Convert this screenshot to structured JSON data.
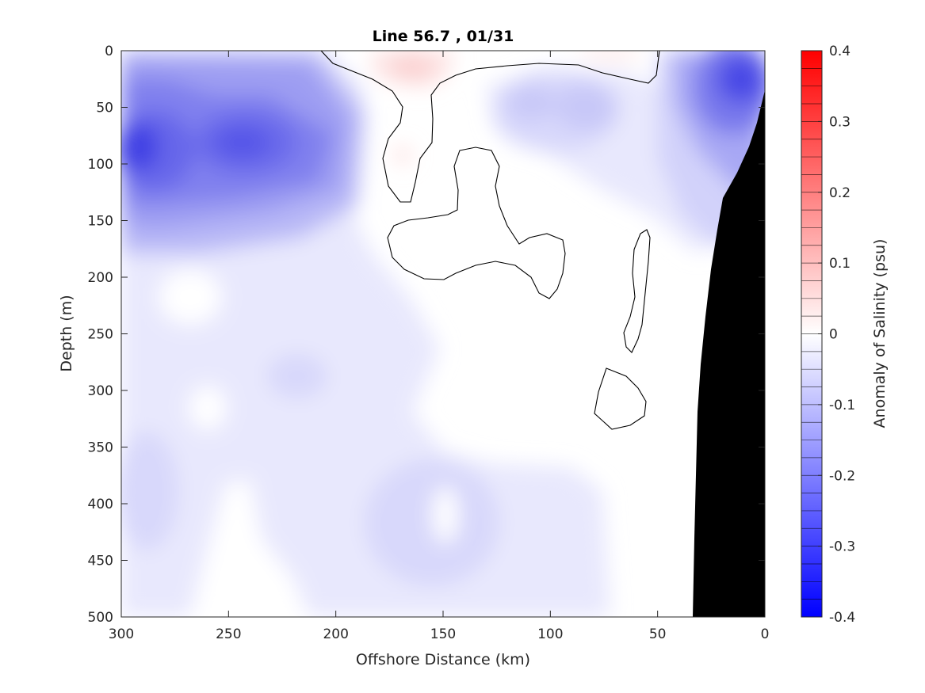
{
  "chart_data": {
    "type": "heatmap",
    "title": "Line 56.7 , 01/31",
    "xlabel": "Offshore Distance (km)",
    "ylabel": "Depth (m)",
    "colorbar_label": "Anomaly of Salinity (psu)",
    "xlim": [
      300,
      0
    ],
    "ylim": [
      0,
      500
    ],
    "x_reversed": true,
    "y_reversed": true,
    "x_ticks": [
      300,
      250,
      200,
      150,
      100,
      50,
      0
    ],
    "y_ticks": [
      0,
      50,
      100,
      150,
      200,
      250,
      300,
      350,
      400,
      450,
      500
    ],
    "colorbar_range": [
      -0.4,
      0.4
    ],
    "colorbar_levels": 32,
    "colorbar_ticks": [
      0.4,
      0.3,
      0.2,
      0.1,
      0,
      -0.1,
      -0.2,
      -0.3,
      -0.4
    ],
    "colorbar_tick_labels": [
      "0.4",
      "0.3",
      "0.2",
      "0.1",
      "0",
      "-0.1",
      "-0.2",
      "-0.3",
      "-0.4"
    ],
    "colors": {
      "positive": "#ff0000",
      "negative": "#0000ff",
      "zero": "#ffffff",
      "bathymetry": "#000000"
    },
    "anomaly_features": [
      {
        "type": "negative",
        "x_km": 290,
        "depth_m": 88,
        "peak": -0.3
      },
      {
        "type": "negative",
        "x_km": 240,
        "depth_m": 80,
        "peak": -0.22
      },
      {
        "type": "negative",
        "x_km": 10,
        "depth_m": 20,
        "peak": -0.28
      },
      {
        "type": "negative",
        "x_km": 85,
        "depth_m": 50,
        "peak": -0.07
      },
      {
        "type": "negative",
        "x_km": 130,
        "depth_m": 430,
        "peak": -0.05
      },
      {
        "type": "positive",
        "x_km": 165,
        "depth_m": 15,
        "peak": 0.04
      },
      {
        "type": "positive",
        "x_km": 160,
        "depth_m": 95,
        "peak": 0.02
      }
    ],
    "grid": false,
    "legend": "colorbar-right"
  }
}
